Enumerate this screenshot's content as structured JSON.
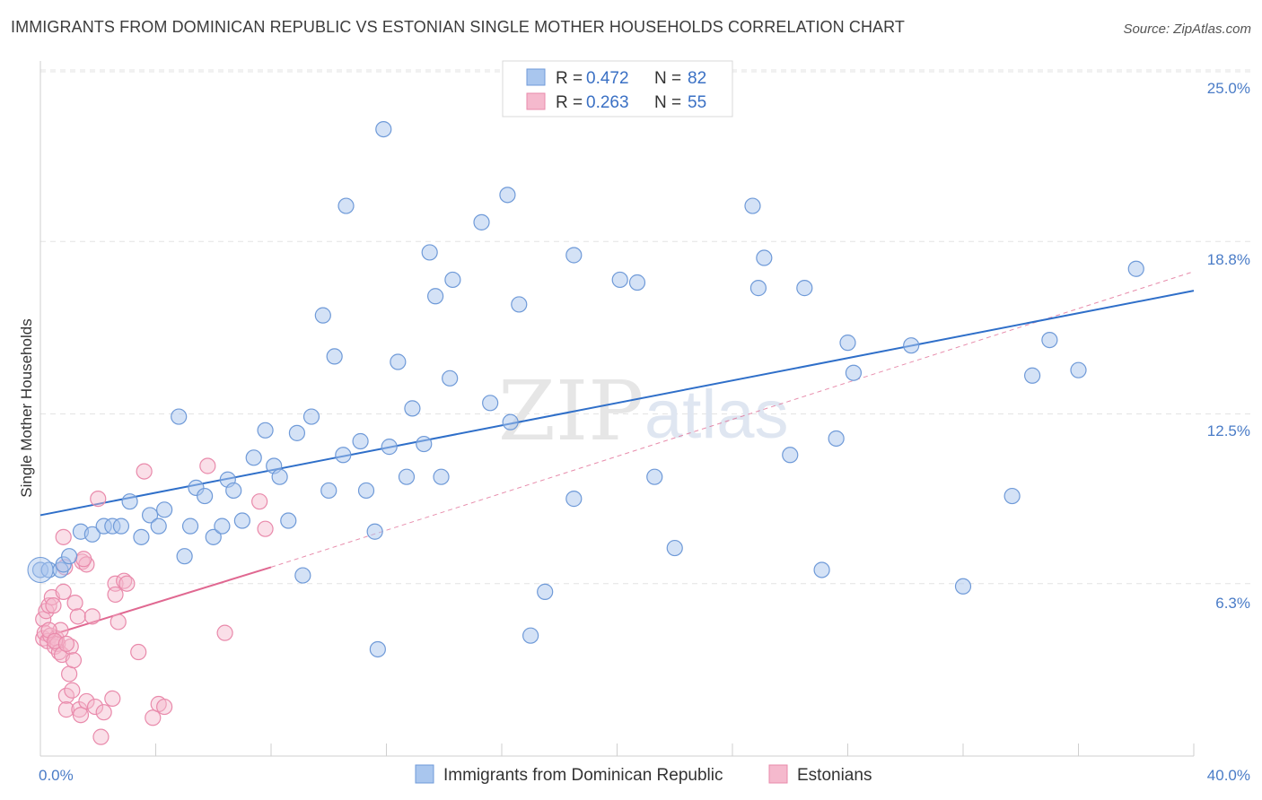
{
  "header": {
    "title": "IMMIGRANTS FROM DOMINICAN REPUBLIC VS ESTONIAN SINGLE MOTHER HOUSEHOLDS CORRELATION CHART",
    "source": "Source: ZipAtlas.com"
  },
  "watermark": {
    "zip": "ZIP",
    "atlas": "atlas"
  },
  "legend": {
    "r_label": "R =",
    "n_label": "N =",
    "series1": {
      "r": "0.472",
      "n": "82"
    },
    "series2": {
      "r": "0.263",
      "n": "55"
    }
  },
  "colors": {
    "blue_fill": "#a9c6ee",
    "blue_stroke": "#6f9ad8",
    "blue_line": "#2f6fc9",
    "pink_fill": "#f5b9cd",
    "pink_stroke": "#e98aab",
    "pink_line": "#e06891",
    "axis_text": "#4a7cc7"
  },
  "chart_data": {
    "type": "scatter",
    "title": "IMMIGRANTS FROM DOMINICAN REPUBLIC VS ESTONIAN SINGLE MOTHER HOUSEHOLDS CORRELATION CHART",
    "xlabel": "",
    "ylabel": "Single Mother Households",
    "xlim": [
      0,
      40
    ],
    "ylim": [
      0,
      25
    ],
    "x_ticks_labels": [
      "0.0%",
      "40.0%"
    ],
    "y_ticks": [
      6.3,
      12.5,
      18.8,
      25.0
    ],
    "y_ticks_labels": [
      "6.3%",
      "12.5%",
      "18.8%",
      "25.0%"
    ],
    "grid": true,
    "legend_position": "top-center",
    "series": [
      {
        "name": "Immigrants from Dominican Republic",
        "r": 0.472,
        "n": 82,
        "trend": {
          "x": [
            0,
            40
          ],
          "y": [
            8.8,
            17.0
          ],
          "style": "solid"
        },
        "points": [
          [
            0.0,
            6.8
          ],
          [
            0.3,
            6.8
          ],
          [
            0.7,
            6.8
          ],
          [
            0.8,
            7.0
          ],
          [
            1.0,
            7.3
          ],
          [
            1.4,
            8.2
          ],
          [
            1.8,
            8.1
          ],
          [
            2.2,
            8.4
          ],
          [
            2.5,
            8.4
          ],
          [
            2.8,
            8.4
          ],
          [
            3.1,
            9.3
          ],
          [
            3.5,
            8.0
          ],
          [
            3.8,
            8.8
          ],
          [
            4.1,
            8.4
          ],
          [
            4.3,
            9.0
          ],
          [
            4.8,
            12.4
          ],
          [
            5.0,
            7.3
          ],
          [
            5.2,
            8.4
          ],
          [
            5.4,
            9.8
          ],
          [
            5.7,
            9.5
          ],
          [
            6.0,
            8.0
          ],
          [
            6.3,
            8.4
          ],
          [
            6.5,
            10.1
          ],
          [
            6.7,
            9.7
          ],
          [
            7.0,
            8.6
          ],
          [
            7.4,
            10.9
          ],
          [
            7.8,
            11.9
          ],
          [
            8.1,
            10.6
          ],
          [
            8.3,
            10.2
          ],
          [
            8.6,
            8.6
          ],
          [
            8.9,
            11.8
          ],
          [
            9.1,
            6.6
          ],
          [
            9.4,
            12.4
          ],
          [
            9.8,
            16.1
          ],
          [
            10.0,
            9.7
          ],
          [
            10.2,
            14.6
          ],
          [
            10.5,
            11.0
          ],
          [
            10.6,
            20.1
          ],
          [
            11.1,
            11.5
          ],
          [
            11.3,
            9.7
          ],
          [
            11.6,
            8.2
          ],
          [
            11.7,
            3.9
          ],
          [
            12.1,
            11.3
          ],
          [
            12.4,
            14.4
          ],
          [
            12.7,
            10.2
          ],
          [
            12.9,
            12.7
          ],
          [
            13.3,
            11.4
          ],
          [
            13.5,
            18.4
          ],
          [
            13.7,
            16.8
          ],
          [
            13.9,
            10.2
          ],
          [
            14.2,
            13.8
          ],
          [
            14.3,
            17.4
          ],
          [
            15.3,
            19.5
          ],
          [
            15.6,
            12.9
          ],
          [
            16.2,
            20.5
          ],
          [
            16.3,
            12.2
          ],
          [
            16.6,
            16.5
          ],
          [
            17.5,
            6.0
          ],
          [
            17.0,
            4.4
          ],
          [
            18.5,
            18.3
          ],
          [
            18.5,
            9.4
          ],
          [
            20.1,
            17.4
          ],
          [
            20.7,
            17.3
          ],
          [
            21.3,
            10.2
          ],
          [
            22.0,
            7.6
          ],
          [
            24.7,
            20.1
          ],
          [
            25.1,
            18.2
          ],
          [
            24.9,
            17.1
          ],
          [
            26.0,
            11.0
          ],
          [
            26.5,
            17.1
          ],
          [
            27.1,
            6.8
          ],
          [
            27.6,
            11.6
          ],
          [
            28.0,
            15.1
          ],
          [
            28.2,
            14.0
          ],
          [
            30.2,
            15.0
          ],
          [
            33.7,
            9.5
          ],
          [
            34.4,
            13.9
          ],
          [
            35.0,
            15.2
          ],
          [
            36.0,
            14.1
          ],
          [
            38.0,
            17.8
          ],
          [
            11.9,
            22.9
          ],
          [
            32.0,
            6.2
          ]
        ]
      },
      {
        "name": "Estonians",
        "r": 0.263,
        "n": 55,
        "trend": {
          "x": [
            0,
            8
          ],
          "y": [
            4.3,
            6.9
          ],
          "style": "solid",
          "extension": {
            "x": [
              8,
              40
            ],
            "y": [
              6.9,
              17.7
            ],
            "style": "dashed"
          }
        },
        "points": [
          [
            0.1,
            4.3
          ],
          [
            0.1,
            5.0
          ],
          [
            0.15,
            4.5
          ],
          [
            0.2,
            5.3
          ],
          [
            0.25,
            4.2
          ],
          [
            0.3,
            5.5
          ],
          [
            0.35,
            4.4
          ],
          [
            0.4,
            5.8
          ],
          [
            0.45,
            5.5
          ],
          [
            0.5,
            4.0
          ],
          [
            0.55,
            4.3
          ],
          [
            0.6,
            4.1
          ],
          [
            0.65,
            3.8
          ],
          [
            0.7,
            4.6
          ],
          [
            0.75,
            3.7
          ],
          [
            0.8,
            6.0
          ],
          [
            0.8,
            8.0
          ],
          [
            0.85,
            6.9
          ],
          [
            0.9,
            2.2
          ],
          [
            0.9,
            1.7
          ],
          [
            1.0,
            3.0
          ],
          [
            1.05,
            4.0
          ],
          [
            1.1,
            2.4
          ],
          [
            1.15,
            3.5
          ],
          [
            1.2,
            5.6
          ],
          [
            1.3,
            5.1
          ],
          [
            1.35,
            1.7
          ],
          [
            1.4,
            1.5
          ],
          [
            1.45,
            7.1
          ],
          [
            1.6,
            2.0
          ],
          [
            1.6,
            7.0
          ],
          [
            1.8,
            5.1
          ],
          [
            1.9,
            1.8
          ],
          [
            2.0,
            9.4
          ],
          [
            2.1,
            0.7
          ],
          [
            2.2,
            1.6
          ],
          [
            2.5,
            2.1
          ],
          [
            2.6,
            6.3
          ],
          [
            2.6,
            5.9
          ],
          [
            2.7,
            4.9
          ],
          [
            2.9,
            6.4
          ],
          [
            3.0,
            6.3
          ],
          [
            3.4,
            3.8
          ],
          [
            3.6,
            10.4
          ],
          [
            3.9,
            1.4
          ],
          [
            4.1,
            1.9
          ],
          [
            4.3,
            1.8
          ],
          [
            5.8,
            10.6
          ],
          [
            6.4,
            4.5
          ],
          [
            7.6,
            9.3
          ],
          [
            7.8,
            8.3
          ],
          [
            0.3,
            4.6
          ],
          [
            0.5,
            4.2
          ],
          [
            1.5,
            7.2
          ],
          [
            0.9,
            4.1
          ]
        ]
      }
    ]
  },
  "bottom_legend": {
    "item1": "Immigrants from Dominican Republic",
    "item2": "Estonians"
  },
  "axes": {
    "ylabel": "Single Mother Households",
    "x_min_label": "0.0%",
    "x_max_label": "40.0%",
    "y_labels": [
      "25.0%",
      "18.8%",
      "12.5%",
      "6.3%"
    ]
  }
}
